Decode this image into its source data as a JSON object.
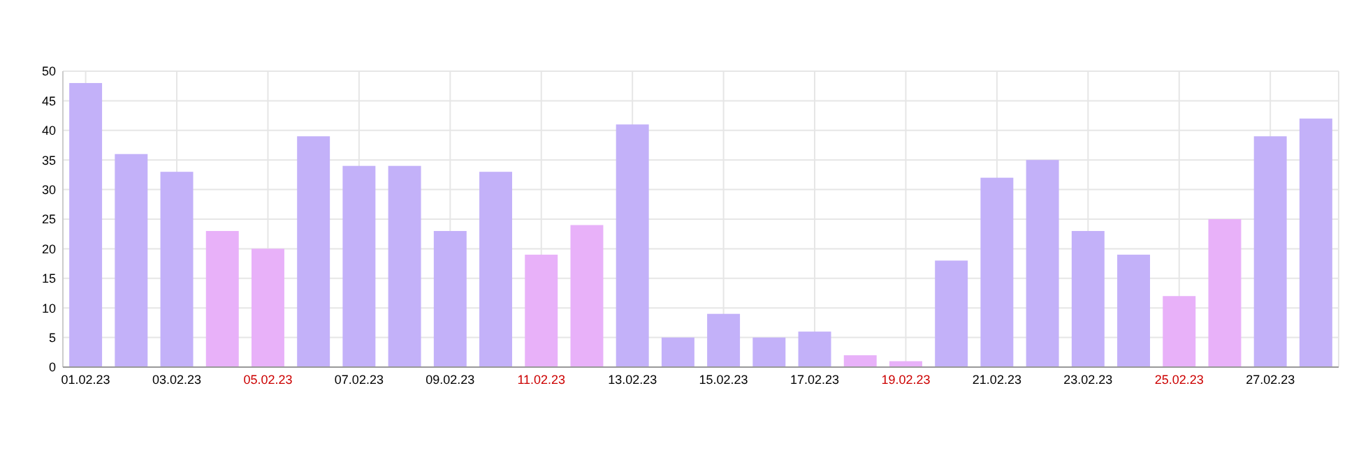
{
  "chart_data": {
    "type": "bar",
    "categories": [
      "01.02.23",
      null,
      "03.02.23",
      null,
      "05.02.23",
      null,
      "07.02.23",
      null,
      "09.02.23",
      null,
      "11.02.23",
      null,
      "13.02.23",
      null,
      "15.02.23",
      null,
      "17.02.23",
      null,
      "19.02.23",
      null,
      "21.02.23",
      null,
      "23.02.23",
      null,
      "25.02.23",
      null,
      "27.02.23",
      null
    ],
    "values": [
      48,
      36,
      33,
      23,
      20,
      39,
      34,
      34,
      23,
      33,
      19,
      24,
      41,
      5,
      9,
      5,
      6,
      2,
      1,
      18,
      32,
      35,
      23,
      19,
      12,
      25,
      39,
      42
    ],
    "colors": [
      "#c3b1f9",
      "#c3b1f9",
      "#c3b1f9",
      "#e8b1f9",
      "#e8b1f9",
      "#c3b1f9",
      "#c3b1f9",
      "#c3b1f9",
      "#c3b1f9",
      "#c3b1f9",
      "#e8b1f9",
      "#e8b1f9",
      "#c3b1f9",
      "#c3b1f9",
      "#c3b1f9",
      "#c3b1f9",
      "#c3b1f9",
      "#e8b1f9",
      "#e8b1f9",
      "#c3b1f9",
      "#c3b1f9",
      "#c3b1f9",
      "#c3b1f9",
      "#c3b1f9",
      "#e8b1f9",
      "#e8b1f9",
      "#c3b1f9",
      "#c3b1f9"
    ],
    "ylim": [
      0,
      50
    ],
    "yticks": [
      0,
      5,
      10,
      15,
      20,
      25,
      30,
      35,
      40,
      45,
      50
    ],
    "grid": true
  }
}
